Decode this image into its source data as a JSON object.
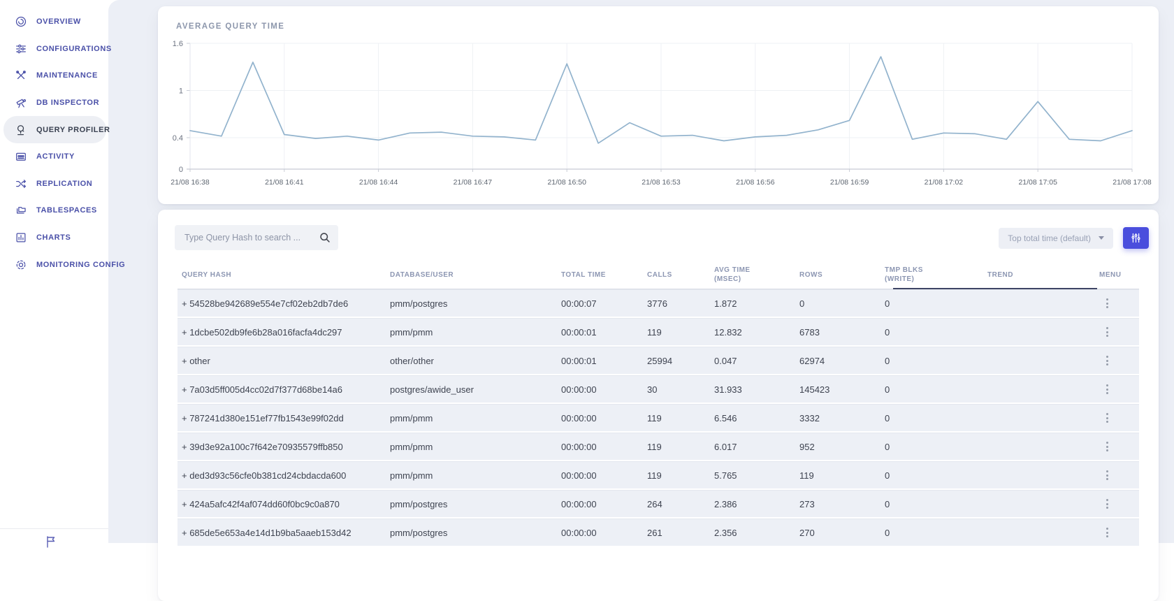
{
  "colors": {
    "accent": "#4a4edd",
    "line": "#92b3cd",
    "sidebar_text": "#4a50a8",
    "active_text": "#394050",
    "row_bg": "#edf0f6"
  },
  "sidebar": {
    "items": [
      {
        "id": "overview",
        "label": "OVERVIEW",
        "icon": "overview-icon",
        "active": false
      },
      {
        "id": "configurations",
        "label": "CONFIGURATIONS",
        "icon": "configurations-icon",
        "active": false
      },
      {
        "id": "maintenance",
        "label": "MAINTENANCE",
        "icon": "maintenance-icon",
        "active": false
      },
      {
        "id": "db-inspector",
        "label": "DB INSPECTOR",
        "icon": "db-inspector-icon",
        "active": false
      },
      {
        "id": "query-profiler",
        "label": "QUERY PROFILER",
        "icon": "query-profiler-icon",
        "active": true
      },
      {
        "id": "activity",
        "label": "ACTIVITY",
        "icon": "activity-icon",
        "active": false
      },
      {
        "id": "replication",
        "label": "REPLICATION",
        "icon": "replication-icon",
        "active": false
      },
      {
        "id": "tablespaces",
        "label": "TABLESPACES",
        "icon": "tablespaces-icon",
        "active": false
      },
      {
        "id": "charts",
        "label": "CHARTS",
        "icon": "charts-icon",
        "active": false
      },
      {
        "id": "monitoring-config",
        "label": "MONITORING CONFIG",
        "icon": "monitoring-config-icon",
        "active": false
      }
    ]
  },
  "chart_card": {
    "title": "AVERAGE QUERY TIME"
  },
  "chart_data": {
    "type": "line",
    "title": "AVERAGE QUERY TIME",
    "xlabel": "",
    "ylabel": "",
    "ylim": [
      0,
      1.6
    ],
    "y_ticks": [
      0,
      0.4,
      1,
      1.6
    ],
    "y_tick_labels": [
      "0",
      "0.4",
      "1",
      "1.6"
    ],
    "x_tick_labels": [
      "21/08 16:38",
      "21/08 16:41",
      "21/08 16:44",
      "21/08 16:47",
      "21/08 16:50",
      "21/08 16:53",
      "21/08 16:56",
      "21/08 16:59",
      "21/08 17:02",
      "21/08 17:05",
      "21/08 17:08"
    ],
    "x_points_per_tick": 3,
    "values": [
      0.49,
      0.42,
      1.36,
      0.44,
      0.39,
      0.42,
      0.37,
      0.46,
      0.47,
      0.42,
      0.41,
      0.37,
      1.34,
      0.33,
      0.59,
      0.42,
      0.43,
      0.36,
      0.41,
      0.43,
      0.5,
      0.62,
      1.43,
      0.38,
      0.46,
      0.45,
      0.38,
      0.86,
      0.38,
      0.36,
      0.49
    ],
    "line_color": "#92b3cd",
    "grid": true,
    "legend_position": "none"
  },
  "toolbar": {
    "search_placeholder": "Type Query Hash to search ...",
    "search_value": "",
    "sort_label": "Top total time (default)"
  },
  "table": {
    "columns": [
      {
        "id": "hash",
        "label": "QUERY HASH",
        "sortable": true
      },
      {
        "id": "db_user",
        "label": "DATABASE/USER",
        "sortable": true
      },
      {
        "id": "total_time",
        "label": "TOTAL TIME",
        "sortable": true
      },
      {
        "id": "calls",
        "label": "CALLS",
        "sortable": true
      },
      {
        "id": "avg_time",
        "label": "AVG TIME\n(MSEC)",
        "sortable": true
      },
      {
        "id": "rows",
        "label": "ROWS",
        "sortable": true
      },
      {
        "id": "tmp_blks",
        "label": "TMP BLKS\n(WRITE)",
        "sortable": true
      },
      {
        "id": "trend",
        "label": "TREND",
        "sortable": false
      },
      {
        "id": "menu",
        "label": "MENU",
        "sortable": false
      }
    ],
    "rows": [
      {
        "hash": "+ 54528be942689e554e7cf02eb2db7de6",
        "db_user": "pmm/postgres",
        "total_time": "00:00:07",
        "calls": "3776",
        "avg_time": "1.872",
        "rows": "0",
        "tmp_blks": "0"
      },
      {
        "hash": "+ 1dcbe502db9fe6b28a016facfa4dc297",
        "db_user": "pmm/pmm",
        "total_time": "00:00:01",
        "calls": "119",
        "avg_time": "12.832",
        "rows": "6783",
        "tmp_blks": "0"
      },
      {
        "hash": "+ other",
        "db_user": "other/other",
        "total_time": "00:00:01",
        "calls": "25994",
        "avg_time": "0.047",
        "rows": "62974",
        "tmp_blks": "0"
      },
      {
        "hash": "+ 7a03d5ff005d4cc02d7f377d68be14a6",
        "db_user": "postgres/awide_user",
        "total_time": "00:00:00",
        "calls": "30",
        "avg_time": "31.933",
        "rows": "145423",
        "tmp_blks": "0"
      },
      {
        "hash": "+ 787241d380e151ef77fb1543e99f02dd",
        "db_user": "pmm/pmm",
        "total_time": "00:00:00",
        "calls": "119",
        "avg_time": "6.546",
        "rows": "3332",
        "tmp_blks": "0"
      },
      {
        "hash": "+ 39d3e92a100c7f642e70935579ffb850",
        "db_user": "pmm/pmm",
        "total_time": "00:00:00",
        "calls": "119",
        "avg_time": "6.017",
        "rows": "952",
        "tmp_blks": "0"
      },
      {
        "hash": "+ ded3d93c56cfe0b381cd24cbdacda600",
        "db_user": "pmm/pmm",
        "total_time": "00:00:00",
        "calls": "119",
        "avg_time": "5.765",
        "rows": "119",
        "tmp_blks": "0"
      },
      {
        "hash": "+ 424a5afc42f4af074dd60f0bc9c0a870",
        "db_user": "pmm/postgres",
        "total_time": "00:00:00",
        "calls": "264",
        "avg_time": "2.386",
        "rows": "273",
        "tmp_blks": "0"
      },
      {
        "hash": "+ 685de5e653a4e14d1b9ba5aaeb153d42",
        "db_user": "pmm/postgres",
        "total_time": "00:00:00",
        "calls": "261",
        "avg_time": "2.356",
        "rows": "270",
        "tmp_blks": "0"
      }
    ]
  }
}
